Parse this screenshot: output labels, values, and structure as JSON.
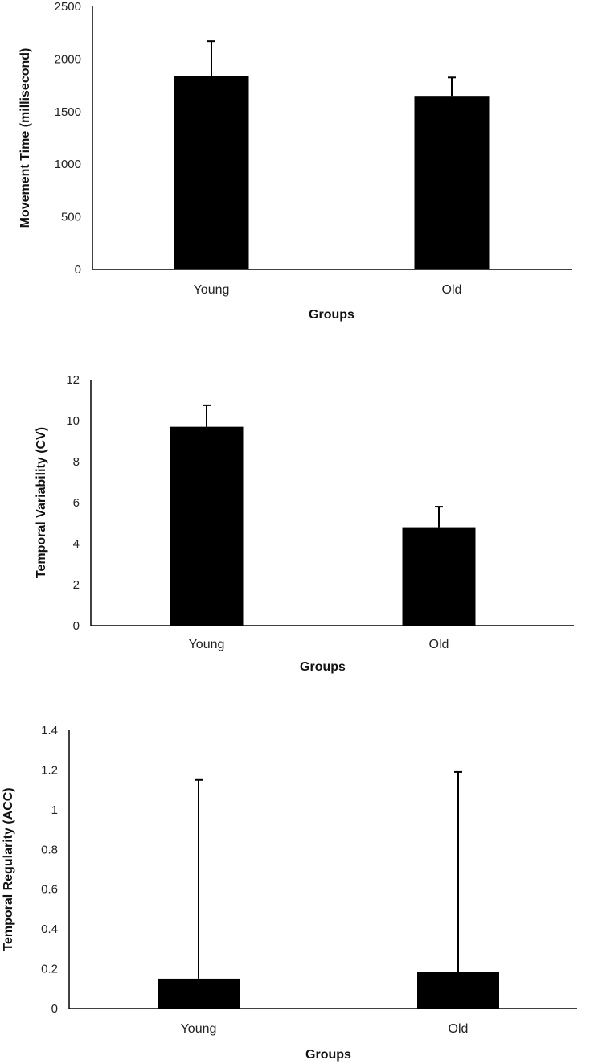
{
  "chart_data": [
    {
      "type": "bar",
      "categories": [
        "Young",
        "Old"
      ],
      "values": [
        1840,
        1650
      ],
      "error_bars": [
        330,
        175
      ],
      "xlabel": "Groups",
      "ylabel": "Movement Time (millisecond)",
      "ylim": [
        0,
        2500
      ],
      "yticks": [
        "0",
        "500",
        "1000",
        "1500",
        "2000",
        "2500"
      ],
      "grid": false,
      "bar_color": "#000000"
    },
    {
      "type": "bar",
      "categories": [
        "Young",
        "Old"
      ],
      "values": [
        9.7,
        4.8
      ],
      "error_bars": [
        1.05,
        1.0
      ],
      "xlabel": "Groups",
      "ylabel": "Temporal Variability (CV)",
      "ylim": [
        0,
        12
      ],
      "yticks": [
        "0",
        "2",
        "4",
        "6",
        "8",
        "10",
        "12"
      ],
      "grid": false,
      "bar_color": "#000000"
    },
    {
      "type": "bar",
      "categories": [
        "Young",
        "Old"
      ],
      "values": [
        0.15,
        0.185
      ],
      "error_bars": [
        1.0,
        1.005
      ],
      "xlabel": "Groups",
      "ylabel": "Temporal Regularity (ACC)",
      "ylim": [
        0,
        1.4
      ],
      "yticks": [
        "0",
        "0.2",
        "0.4",
        "0.6",
        "0.8",
        "1",
        "1.2",
        "1.4"
      ],
      "grid": false,
      "bar_color": "#000000"
    }
  ]
}
